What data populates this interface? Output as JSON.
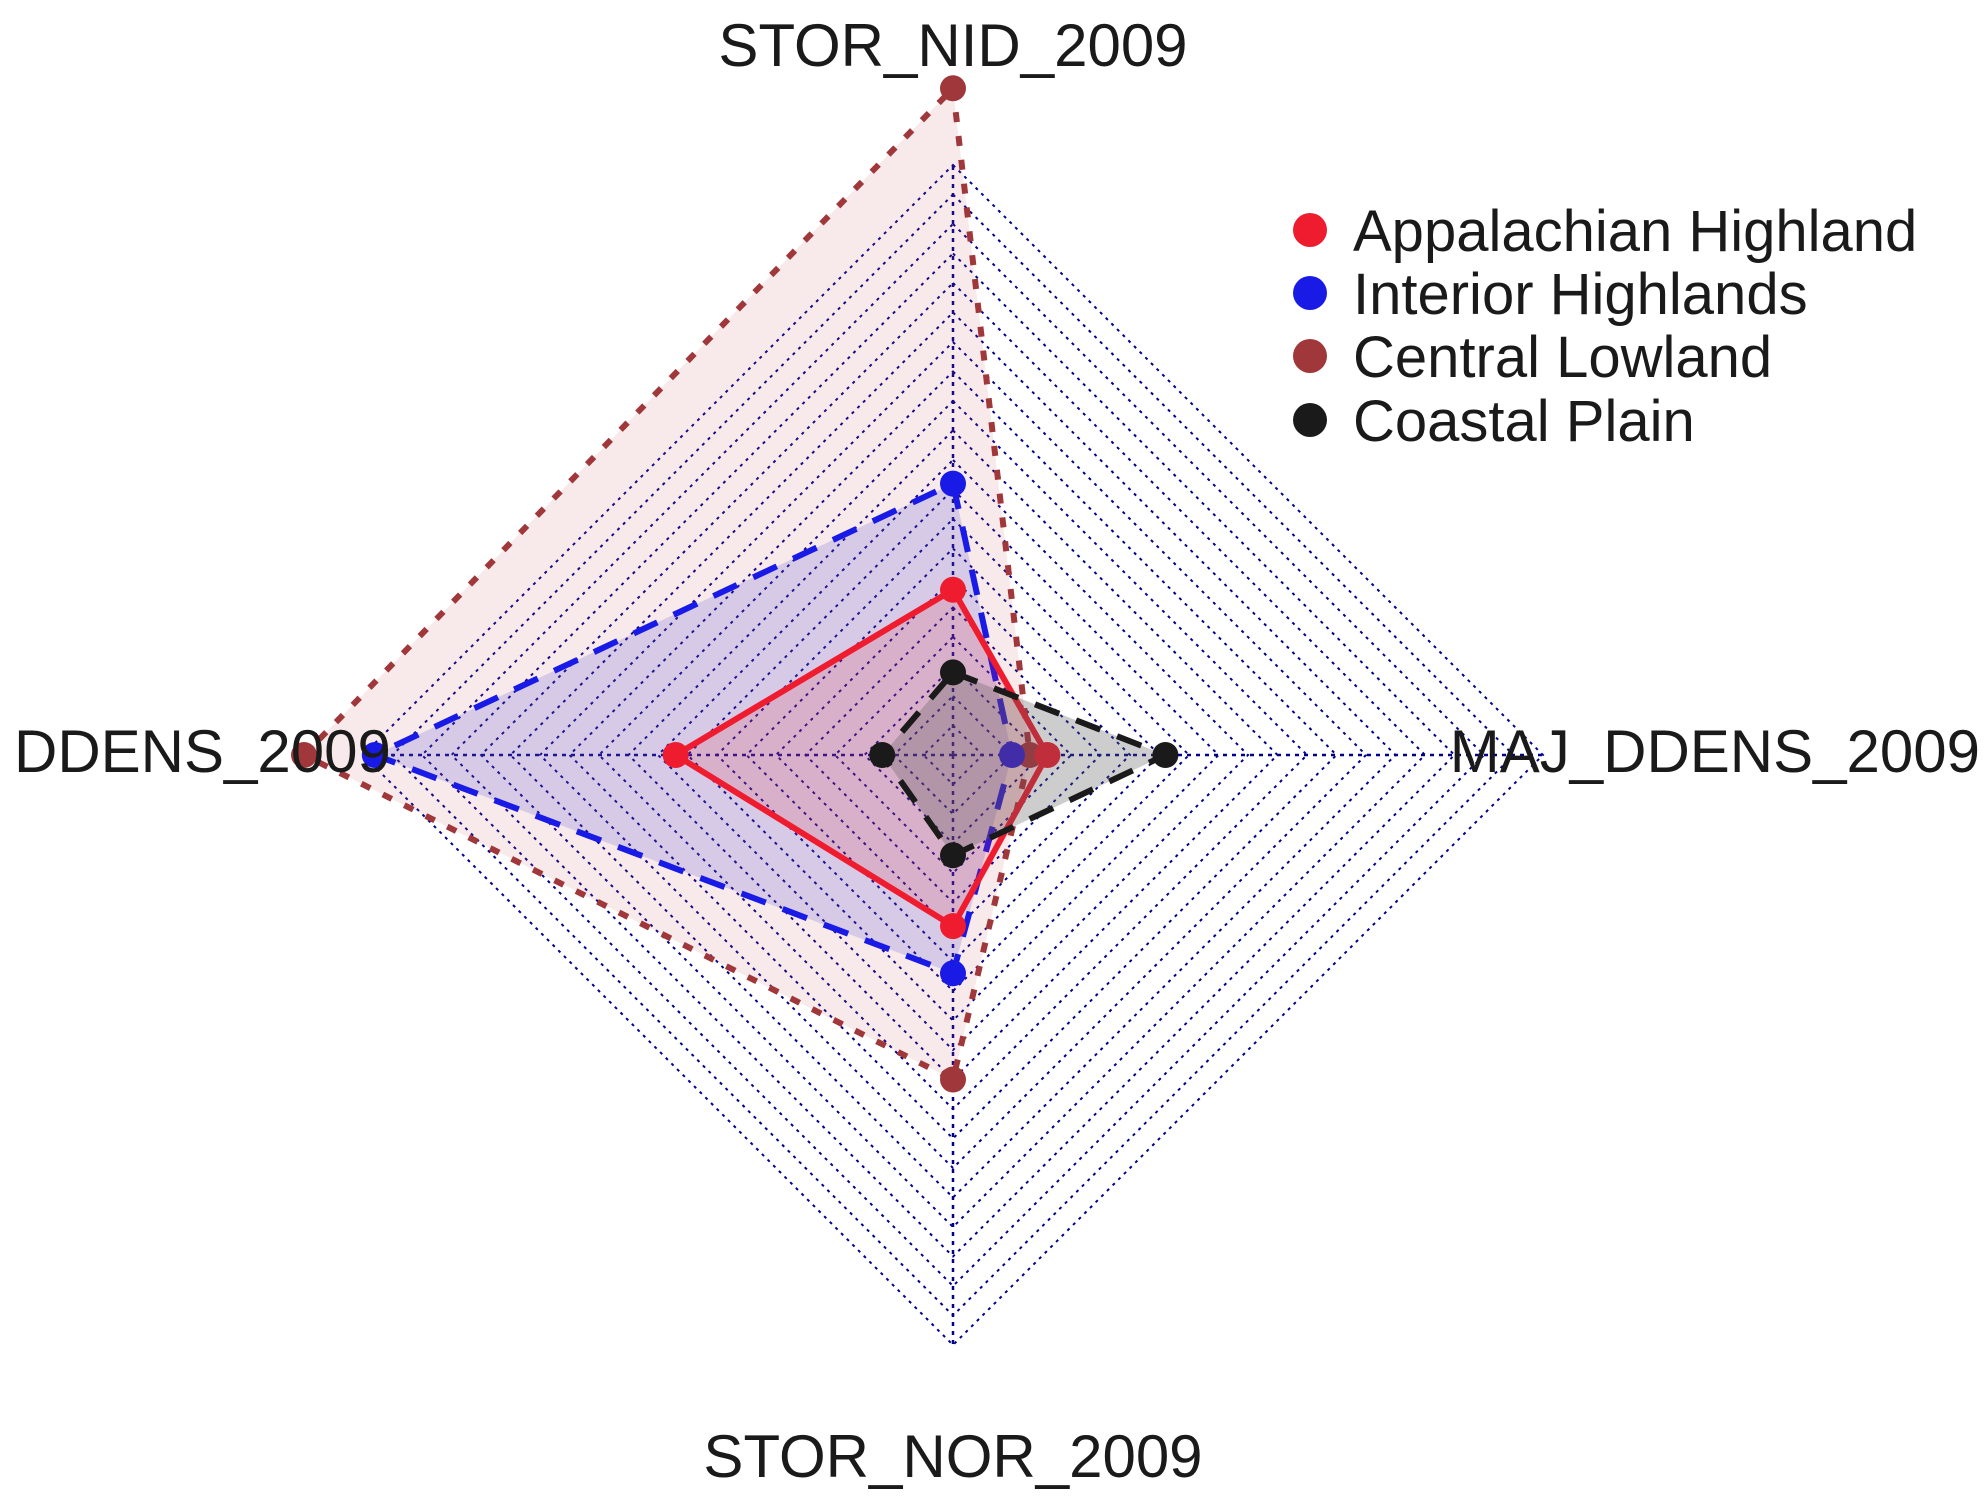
{
  "chart_data": {
    "type": "radar",
    "axes": [
      "STOR_NID_2009",
      "MAJ_DDENS_2009",
      "STOR_NOR_2009",
      "DDENS_2009"
    ],
    "axis_max": 1,
    "grid_levels": 20,
    "grid_style": "dotted",
    "grid_color": "#00008b",
    "legend_position": "top-right",
    "series": [
      {
        "name": "Appalachian Highland",
        "color": "#ee1c2e",
        "fill": "rgba(238,28,46,0.15)",
        "line_style": "solid",
        "values": [
          0.28,
          0.16,
          0.29,
          0.47
        ]
      },
      {
        "name": "Interior Highlands",
        "color": "#1a1ae6",
        "fill": "rgba(60,60,210,0.18)",
        "line_style": "dashed",
        "values": [
          0.46,
          0.1,
          0.37,
          0.98
        ]
      },
      {
        "name": "Central Lowland",
        "color": "#a0373a",
        "fill": "rgba(200,80,90,0.12)",
        "line_style": "dotted",
        "values": [
          1.13,
          0.13,
          0.55,
          1.1
        ]
      },
      {
        "name": "Coastal Plain",
        "color": "#1a1a1a",
        "fill": "rgba(90,90,90,0.3)",
        "line_style": "dashed",
        "values": [
          0.14,
          0.36,
          0.17,
          0.12
        ]
      }
    ]
  }
}
